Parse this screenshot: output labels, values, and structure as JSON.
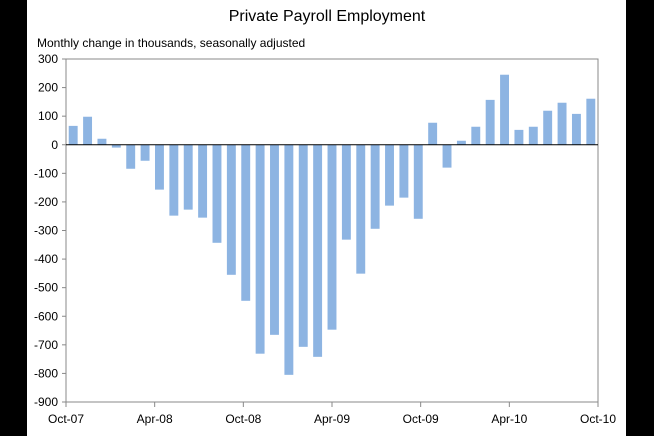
{
  "chart_data": {
    "type": "bar",
    "title": "Private Payroll Employment",
    "subtitle": "Monthly change in thousands, seasonally adjusted",
    "xlabel": "",
    "ylabel": "Monthly change in thousands, seasonally adjusted",
    "ylim": [
      -900,
      300
    ],
    "yticks": [
      "300",
      "200",
      "100",
      "0",
      "-100",
      "-200",
      "-300",
      "-400",
      "-500",
      "-600",
      "-700",
      "-800",
      "-900"
    ],
    "xticks": [
      "Oct-07",
      "Apr-08",
      "Oct-08",
      "Apr-09",
      "Oct-09",
      "Apr-10",
      "Oct-10"
    ],
    "values": [
      66,
      98,
      21,
      -10,
      -84,
      -56,
      -157,
      -248,
      -227,
      -255,
      -343,
      -455,
      -546,
      -731,
      -665,
      -805,
      -707,
      -742,
      -647,
      -332,
      -451,
      -294,
      -213,
      -185,
      -259,
      77,
      -80,
      14,
      63,
      157,
      245,
      52,
      63,
      119,
      147,
      108,
      161
    ],
    "bar_color": "#8db4e2",
    "grid": false,
    "legend": "none"
  }
}
